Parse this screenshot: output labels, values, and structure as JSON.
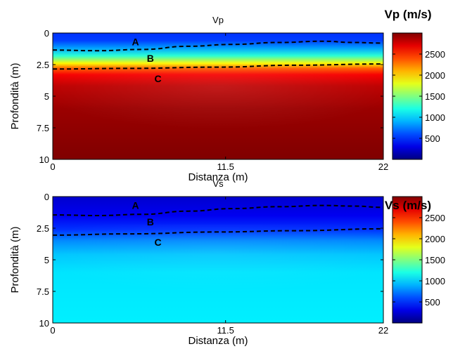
{
  "chart_data": [
    {
      "type": "heatmap",
      "title": "Vp",
      "xlabel": "Distanza (m)",
      "ylabel": "Profondità (m)",
      "xlim": [
        0,
        22
      ],
      "ylim": [
        0,
        10
      ],
      "y_reversed": true,
      "xticks": [
        "0",
        "11.5",
        "22"
      ],
      "yticks": [
        "0",
        "2.5",
        "5",
        "7.5",
        "10"
      ],
      "colorbar": {
        "title": "Vp (m/s)",
        "range": [
          0,
          3000
        ],
        "ticks": [
          "500",
          "1000",
          "1500",
          "2000",
          "2500"
        ],
        "colormap": "jet"
      },
      "layer_profile": [
        {
          "depth": 0,
          "velocity": 520
        },
        {
          "depth": 0.6,
          "velocity": 560
        },
        {
          "depth": 1.2,
          "velocity": 850
        },
        {
          "depth": 1.8,
          "velocity": 1250
        },
        {
          "depth": 2.4,
          "velocity": 1900
        },
        {
          "depth": 2.8,
          "velocity": 2350
        },
        {
          "depth": 3.3,
          "velocity": 2650
        },
        {
          "depth": 4.2,
          "velocity": 2820
        },
        {
          "depth": 6.0,
          "velocity": 2920
        },
        {
          "depth": 10,
          "velocity": 3000
        }
      ],
      "interfaces": [
        {
          "x": [
            0,
            3,
            6,
            9,
            12,
            15,
            18,
            20,
            22
          ],
          "depth": [
            1.35,
            1.4,
            1.3,
            1.05,
            0.9,
            0.75,
            0.65,
            0.75,
            0.8
          ]
        },
        {
          "x": [
            0,
            5,
            11,
            16,
            22
          ],
          "depth": [
            2.85,
            2.8,
            2.7,
            2.55,
            2.45
          ]
        }
      ],
      "layer_labels": [
        {
          "text": "A",
          "x": 5.5,
          "depth": 0.7
        },
        {
          "text": "B",
          "x": 6.5,
          "depth": 2.0
        },
        {
          "text": "C",
          "x": 7.0,
          "depth": 3.6
        }
      ]
    },
    {
      "type": "heatmap",
      "title": "Vs",
      "xlabel": "Distanza (m)",
      "ylabel": "Profondità (m)",
      "xlim": [
        0,
        22
      ],
      "ylim": [
        0,
        10
      ],
      "y_reversed": true,
      "xticks": [
        "0",
        "11.5",
        "22"
      ],
      "yticks": [
        "0",
        "2.5",
        "5",
        "7.5",
        "10"
      ],
      "colorbar": {
        "title": "Vs (m/s)",
        "range": [
          0,
          3000
        ],
        "ticks": [
          "500",
          "1000",
          "1500",
          "2000",
          "2500"
        ],
        "colormap": "jet"
      },
      "layer_profile": [
        {
          "depth": 0,
          "velocity": 230
        },
        {
          "depth": 1.5,
          "velocity": 330
        },
        {
          "depth": 2.6,
          "velocity": 520
        },
        {
          "depth": 3.5,
          "velocity": 780
        },
        {
          "depth": 4.6,
          "velocity": 960
        },
        {
          "depth": 6.0,
          "velocity": 1050
        },
        {
          "depth": 10,
          "velocity": 1080
        }
      ],
      "interfaces": [
        {
          "x": [
            0,
            3,
            6,
            9,
            12,
            15,
            18,
            20,
            22
          ],
          "depth": [
            1.45,
            1.5,
            1.4,
            1.15,
            0.95,
            0.8,
            0.7,
            0.75,
            0.85
          ]
        },
        {
          "x": [
            0,
            5,
            11,
            16,
            22
          ],
          "depth": [
            3.05,
            2.95,
            2.8,
            2.7,
            2.55
          ]
        }
      ],
      "layer_labels": [
        {
          "text": "A",
          "x": 5.5,
          "depth": 0.7
        },
        {
          "text": "B",
          "x": 6.5,
          "depth": 2.0
        },
        {
          "text": "C",
          "x": 7.0,
          "depth": 3.6
        }
      ]
    }
  ]
}
